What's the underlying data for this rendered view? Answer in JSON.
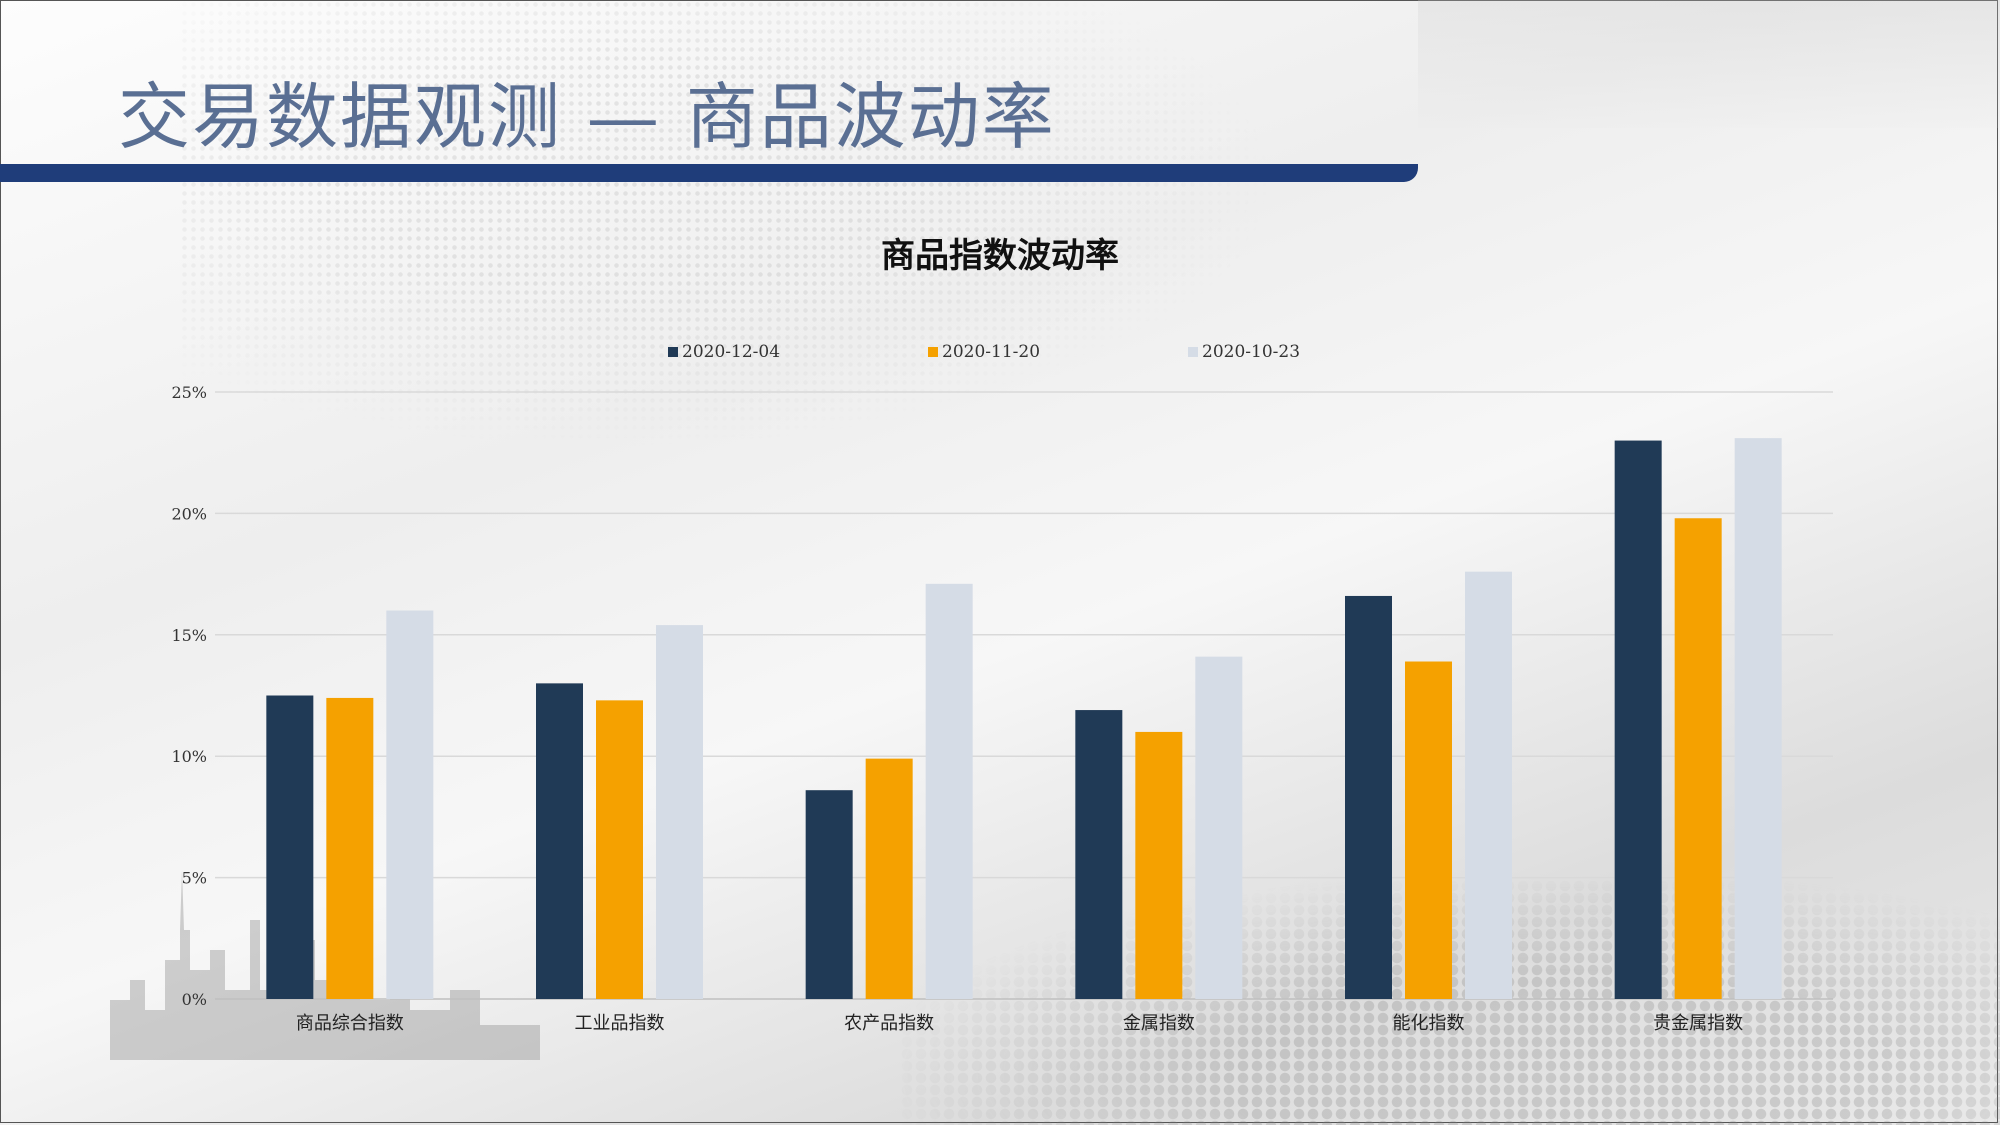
{
  "page": {
    "title": "交易数据观测 — 商品波动率"
  },
  "colors": {
    "header_bar": "#1f3d7a",
    "title_text": "#5a6f93"
  },
  "chart_data": {
    "type": "bar",
    "title": "商品指数波动率",
    "xlabel": "",
    "ylabel": "",
    "ylim": [
      0,
      25
    ],
    "ytick_values": [
      0,
      5,
      10,
      15,
      20,
      25
    ],
    "ytick_labels": [
      "0%",
      "5%",
      "10%",
      "15%",
      "20%",
      "25%"
    ],
    "grid": true,
    "legend_position": "top",
    "categories": [
      "商品综合指数",
      "工业品指数",
      "农产品指数",
      "金属指数",
      "能化指数",
      "贵金属指数"
    ],
    "series": [
      {
        "name": "2020-12-04",
        "color": "#203a56",
        "values": [
          12.5,
          13.0,
          8.6,
          11.9,
          16.6,
          23.0
        ]
      },
      {
        "name": "2020-11-20",
        "color": "#f5a100",
        "values": [
          12.4,
          12.3,
          9.9,
          11.0,
          13.9,
          19.8
        ]
      },
      {
        "name": "2020-10-23",
        "color": "#d5dce6",
        "values": [
          16.0,
          15.4,
          17.1,
          14.1,
          17.6,
          23.1
        ]
      }
    ]
  }
}
